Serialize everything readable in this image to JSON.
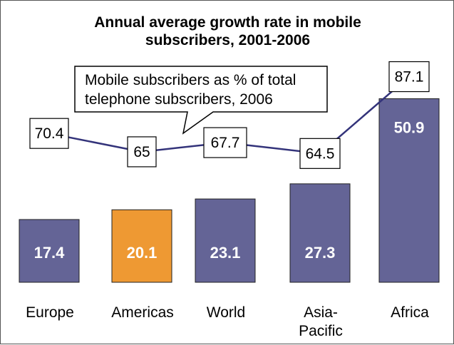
{
  "title_line1": "Annual average growth rate in mobile",
  "title_line2": "subscribers, 2001-2006",
  "callout_line1": "Mobile subscribers as % of total",
  "callout_line2": "telephone subscribers, 2006",
  "chart_data": {
    "type": "bar",
    "title": "Annual average growth rate in mobile subscribers, 2001-2006",
    "categories": [
      "Europe",
      "Americas",
      "World",
      "Asia-\nPacific",
      "Africa"
    ],
    "series": [
      {
        "name": "Annual average growth rate in mobile subscribers, 2001-2006",
        "kind": "bar",
        "values": [
          17.4,
          20.1,
          23.1,
          27.3,
          50.9
        ],
        "labels": [
          "17.4",
          "20.1",
          "23.1",
          "27.3",
          "50.9"
        ],
        "colors": [
          "#646496",
          "#EE9933",
          "#646496",
          "#646496",
          "#646496"
        ]
      },
      {
        "name": "Mobile subscribers as % of total telephone subscribers, 2006",
        "kind": "line",
        "values": [
          70.4,
          65,
          67.7,
          64.5,
          87.1
        ],
        "labels": [
          "70.4",
          "65",
          "67.7",
          "64.5",
          "87.1"
        ],
        "color": "#33337A"
      }
    ],
    "xlabel": "",
    "ylabel": "",
    "grid": false
  }
}
